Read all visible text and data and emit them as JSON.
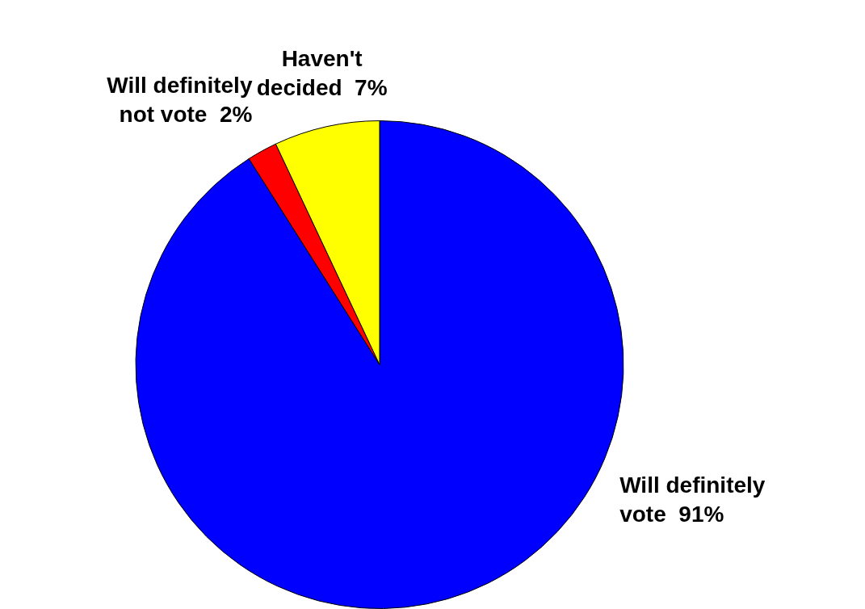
{
  "chart_data": {
    "type": "pie",
    "categories": [
      "Will definitely vote",
      "Will definitely not vote",
      "Haven't decided"
    ],
    "values": [
      91,
      2,
      7
    ],
    "colors": [
      "#0000ff",
      "#ff0000",
      "#ffff00"
    ],
    "value_labels": [
      "91%",
      "2%",
      "7%"
    ],
    "legend": false
  }
}
